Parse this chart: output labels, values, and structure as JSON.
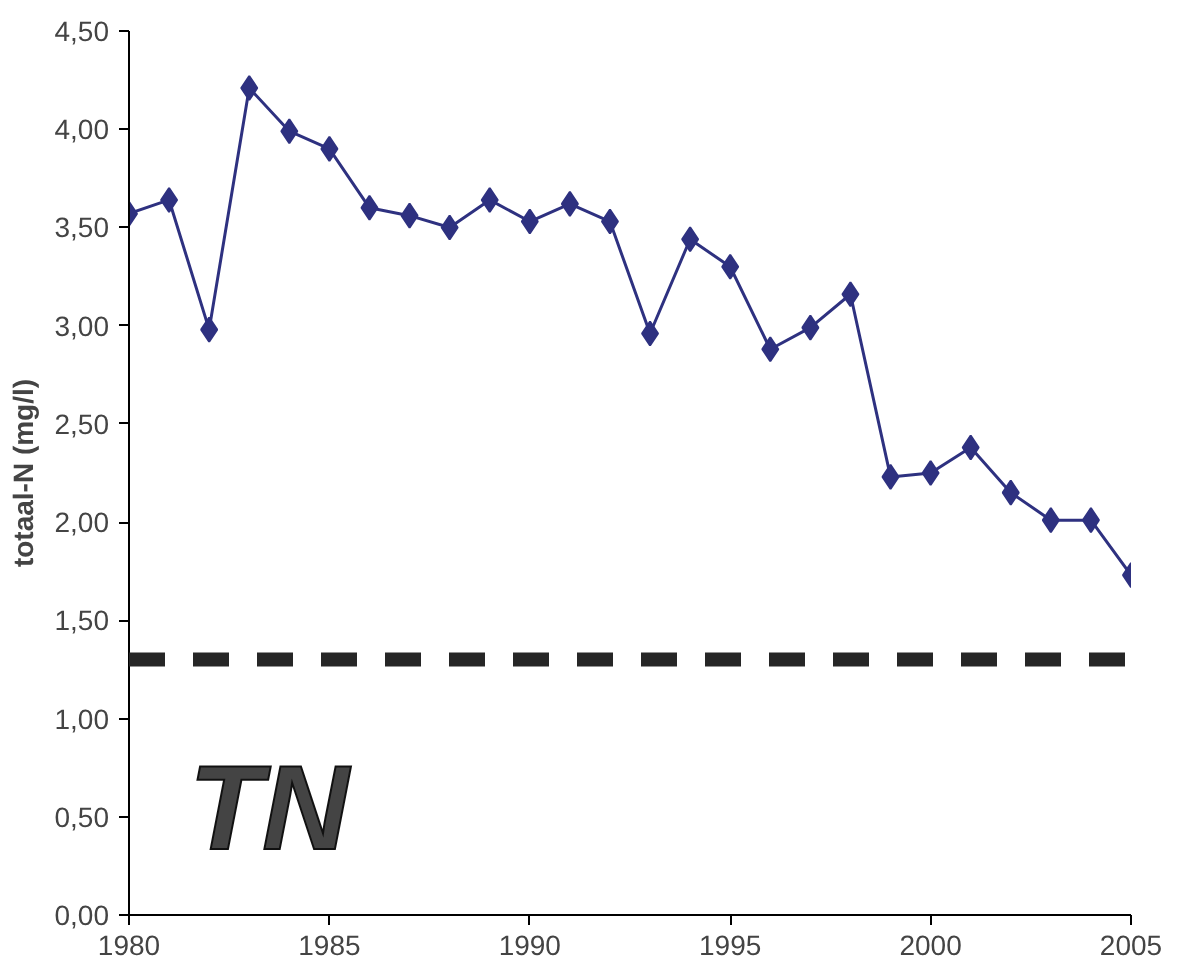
{
  "chart_data": {
    "type": "line",
    "ylabel": "totaal-N (mg/l)",
    "x": [
      1980,
      1981,
      1982,
      1983,
      1984,
      1985,
      1986,
      1987,
      1988,
      1989,
      1990,
      1991,
      1992,
      1993,
      1994,
      1995,
      1996,
      1997,
      1998,
      1999,
      2000,
      2001,
      2002,
      2003,
      2004,
      2005
    ],
    "series": [
      {
        "color": "#2e3180",
        "values": [
          3.57,
          3.64,
          2.98,
          4.21,
          3.99,
          3.9,
          3.6,
          3.56,
          3.5,
          3.64,
          3.53,
          3.62,
          3.53,
          2.96,
          3.44,
          3.3,
          2.88,
          2.99,
          3.16,
          2.23,
          2.25,
          2.38,
          2.15,
          2.01,
          2.01,
          1.73
        ]
      }
    ],
    "xlim": [
      1980,
      2005
    ],
    "xticks": [
      1980,
      1985,
      1990,
      1995,
      2000,
      2005
    ],
    "ylim": [
      0,
      4.5
    ],
    "yticks": [
      {
        "value": 0,
        "label": "0,00"
      },
      {
        "value": 0.5,
        "label": "0,50"
      },
      {
        "value": 1,
        "label": "1,00"
      },
      {
        "value": 1.5,
        "label": "1,50"
      },
      {
        "value": 2,
        "label": "2,00"
      },
      {
        "value": 2.5,
        "label": "2,50"
      },
      {
        "value": 3,
        "label": "3,00"
      },
      {
        "value": 3.5,
        "label": "3,50"
      },
      {
        "value": 4,
        "label": "4,00"
      },
      {
        "value": 4.5,
        "label": "4,50"
      }
    ],
    "ref_lines": [
      {
        "axis": "y",
        "value": 1.3,
        "color": "#262626",
        "line_style": "dashed"
      }
    ],
    "annotations": [
      "TN"
    ],
    "marker": "diamond",
    "line_style": "solid",
    "grid": false
  }
}
